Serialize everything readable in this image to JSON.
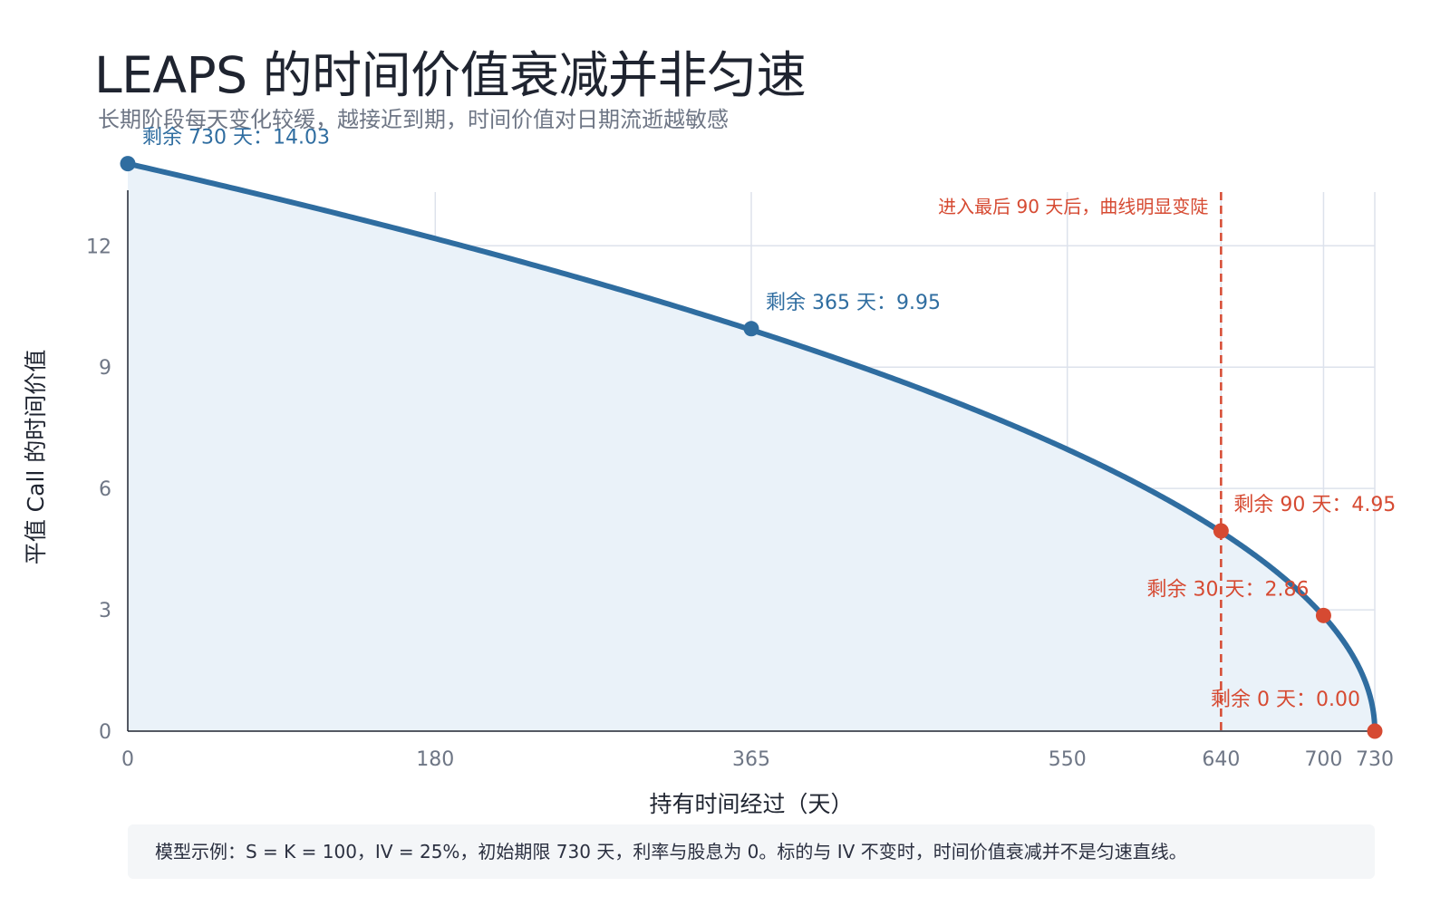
{
  "header": {
    "title": "LEAPS 的时间价值衰减并非匀速",
    "subtitle": "长期阶段每天变化较缓，越接近到期，时间价值对日期流逝越敏感"
  },
  "footer_note": "模型示例：S = K = 100，IV = 25%，初始期限 730 天，利率与股息为 0。标的与 IV 不变时，时间价值衰减并不是匀速直线。",
  "colors": {
    "line": "#2f6da0",
    "area": "#eaf2f9",
    "highlight": "#d64a32",
    "grid": "#dde2ec",
    "axis": "#1f2430",
    "tick_text": "#6e7685",
    "label_blue": "#2f6da0"
  },
  "chart_data": {
    "type": "area",
    "title": "",
    "xlabel": "持有时间经过（天）",
    "ylabel": "平值 Call 的时间价值",
    "xlim": [
      0,
      730
    ],
    "ylim": [
      0,
      14
    ],
    "x_ticks": [
      0,
      180,
      365,
      550,
      640,
      700,
      730
    ],
    "y_ticks": [
      0,
      3,
      6,
      9,
      12
    ],
    "grid": true,
    "curve": {
      "days_remaining_start": 730,
      "value_at_start": 14.03,
      "shape": "proportional to sqrt(days remaining)"
    },
    "annotated_points": [
      {
        "x": 0,
        "y": 14.03,
        "label": "剩余 730 天：14.03",
        "color": "blue"
      },
      {
        "x": 365,
        "y": 9.95,
        "label": "剩余 365 天：9.95",
        "color": "blue"
      },
      {
        "x": 640,
        "y": 4.95,
        "label": "剩余 90 天：4.95",
        "color": "red"
      },
      {
        "x": 700,
        "y": 2.86,
        "label": "剩余 30 天：2.86",
        "color": "red"
      },
      {
        "x": 730,
        "y": 0.0,
        "label": "剩余 0 天：0.00",
        "color": "red"
      }
    ],
    "vline": {
      "x": 640,
      "label": "进入最后 90 天后，曲线明显变陡"
    }
  }
}
